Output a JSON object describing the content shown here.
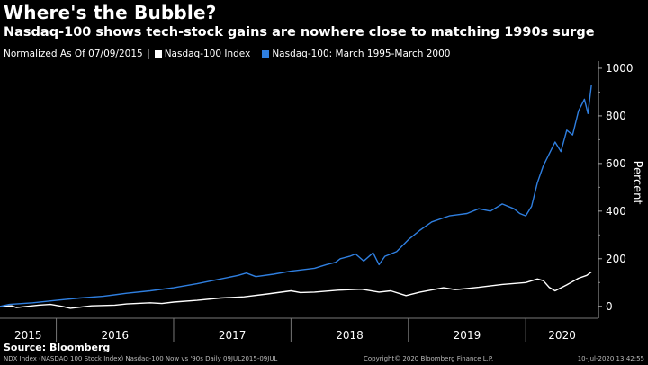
{
  "header": {
    "title": "Where's the Bubble?",
    "subtitle": "Nasdaq-100 shows tech-stock gains are nowhere close to matching 1990s surge"
  },
  "legend": {
    "normalized_label": "Normalized As Of 07/09/2015",
    "items": [
      {
        "label": "Nasdaq-100 Index",
        "color": "#ffffff"
      },
      {
        "label": "Nasdaq-100: March 1995-March 2000",
        "color": "#2f7fe0"
      }
    ]
  },
  "footer": {
    "source": "Source: Bloomberg",
    "left_text": "NDX Index (NASDAQ 100 Stock Index) Nasdaq-100 Now vs '90s  Daily 09JUL2015-09JUL",
    "center_text": "Copyright© 2020 Bloomberg Finance L.P.",
    "right_text": "10-Jul-2020 13:42:55"
  },
  "chart_data": {
    "type": "line",
    "ylabel": "Percent",
    "ylim": [
      -50,
      1030
    ],
    "yticks": [
      0,
      200,
      400,
      600,
      800,
      1000
    ],
    "xlim": [
      2015.52,
      2020.62
    ],
    "x_ticks_labels": [
      "2015",
      "2016",
      "2017",
      "2018",
      "2019",
      "2020"
    ],
    "x_label_positions": [
      2015.76,
      2016.5,
      2017.5,
      2018.5,
      2019.5,
      2020.31
    ],
    "year_boundaries": [
      2016,
      2017,
      2018,
      2019,
      2020
    ],
    "grid": false,
    "legend_position": "top-left",
    "series": [
      {
        "name": "Nasdaq-100 Index",
        "color": "#ffffff",
        "x": [
          2015.52,
          2015.62,
          2015.66,
          2015.75,
          2015.85,
          2015.95,
          2016.05,
          2016.12,
          2016.3,
          2016.5,
          2016.6,
          2016.8,
          2016.9,
          2017.0,
          2017.2,
          2017.4,
          2017.6,
          2017.8,
          2018.0,
          2018.08,
          2018.2,
          2018.4,
          2018.6,
          2018.75,
          2018.85,
          2018.98,
          2019.1,
          2019.3,
          2019.4,
          2019.5,
          2019.6,
          2019.8,
          2020.0,
          2020.1,
          2020.15,
          2020.2,
          2020.25,
          2020.35,
          2020.45,
          2020.52,
          2020.56
        ],
        "values": [
          0,
          2,
          -5,
          0,
          5,
          8,
          0,
          -8,
          2,
          5,
          10,
          15,
          12,
          18,
          25,
          35,
          40,
          52,
          65,
          58,
          60,
          68,
          72,
          60,
          65,
          45,
          60,
          78,
          70,
          75,
          80,
          92,
          100,
          115,
          108,
          80,
          65,
          90,
          118,
          130,
          145
        ]
      },
      {
        "name": "Nasdaq-100: March 1995-March 2000",
        "color": "#2f7fe0",
        "x": [
          2015.52,
          2015.6,
          2015.8,
          2016.0,
          2016.2,
          2016.4,
          2016.6,
          2016.8,
          2017.0,
          2017.2,
          2017.4,
          2017.55,
          2017.62,
          2017.7,
          2017.85,
          2018.0,
          2018.2,
          2018.3,
          2018.38,
          2018.42,
          2018.5,
          2018.55,
          2018.62,
          2018.7,
          2018.75,
          2018.8,
          2018.9,
          2019.0,
          2019.1,
          2019.2,
          2019.35,
          2019.5,
          2019.6,
          2019.7,
          2019.8,
          2019.9,
          2019.95,
          2020.0,
          2020.05,
          2020.1,
          2020.15,
          2020.2,
          2020.25,
          2020.3,
          2020.35,
          2020.4,
          2020.45,
          2020.5,
          2020.53,
          2020.56
        ],
        "values": [
          0,
          8,
          15,
          25,
          35,
          42,
          55,
          65,
          78,
          95,
          115,
          130,
          140,
          125,
          135,
          148,
          160,
          175,
          185,
          200,
          210,
          220,
          190,
          225,
          175,
          210,
          230,
          280,
          320,
          355,
          380,
          390,
          410,
          400,
          430,
          410,
          390,
          380,
          420,
          520,
          590,
          640,
          690,
          650,
          740,
          720,
          820,
          870,
          810,
          930
        ]
      }
    ]
  }
}
